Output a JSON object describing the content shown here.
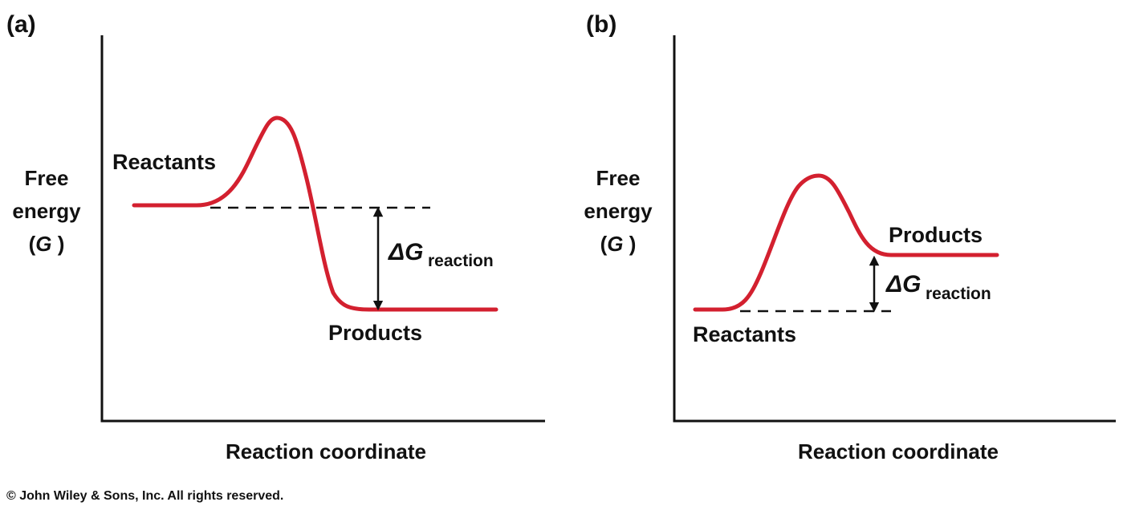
{
  "panels": [
    {
      "letter": "(a)",
      "ylabel_line1": "Free",
      "ylabel_line2": "energy",
      "ylabel_line3_open": "(",
      "ylabel_line3_symbol": "G",
      "ylabel_line3_close": " )",
      "xlabel": "Reaction coordinate",
      "reactants_label": "Reactants",
      "products_label": "Products",
      "delta_symbol": "ΔG",
      "delta_subscript": "reaction",
      "curve_color": "#d3202f"
    },
    {
      "letter": "(b)",
      "ylabel_line1": "Free",
      "ylabel_line2": "energy",
      "ylabel_line3_open": "(",
      "ylabel_line3_symbol": "G",
      "ylabel_line3_close": " )",
      "xlabel": "Reaction coordinate",
      "reactants_label": "Reactants",
      "products_label": "Products",
      "delta_symbol": "ΔG",
      "delta_subscript": "reaction",
      "curve_color": "#d3202f"
    }
  ],
  "copyright": "© John Wiley & Sons, Inc. All rights reserved."
}
